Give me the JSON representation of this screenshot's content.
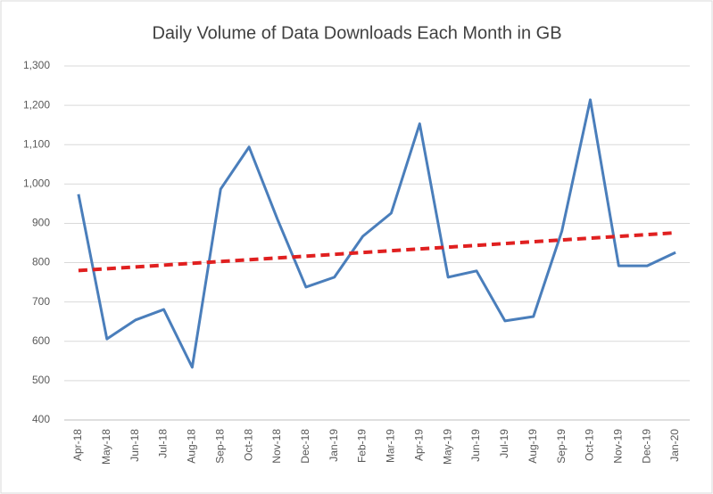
{
  "chart_data": {
    "type": "line",
    "title": "Daily Volume of Data Downloads Each Month in GB",
    "categories": [
      "Apr-18",
      "May-18",
      "Jun-18",
      "Jul-18",
      "Aug-18",
      "Sep-18",
      "Oct-18",
      "Nov-18",
      "Dec-18",
      "Jan-19",
      "Feb-19",
      "Mar-19",
      "Apr-19",
      "May-19",
      "Jun-19",
      "Jul-19",
      "Aug-19",
      "Sep-19",
      "Oct-19",
      "Nov-19",
      "Dec-19",
      "Jan-20"
    ],
    "series": [
      {
        "color": "#4a7ebb",
        "values": [
          974,
          606,
          654,
          681,
          534,
          987,
          1094,
          910,
          738,
          763,
          867,
          926,
          1153,
          763,
          779,
          652,
          663,
          880,
          1214,
          792,
          792,
          826
        ]
      }
    ],
    "trend": {
      "color": "#e02020",
      "start": 780,
      "end": 876
    },
    "ylim": [
      400,
      1300
    ],
    "yticks": [
      400,
      500,
      600,
      700,
      800,
      900,
      {
        "value": 1000,
        "label": "1,000"
      },
      {
        "value": 1100,
        "label": "1,100"
      },
      {
        "value": 1200,
        "label": "1,200"
      },
      {
        "value": 1300,
        "label": "1,300"
      }
    ],
    "grid": true
  }
}
